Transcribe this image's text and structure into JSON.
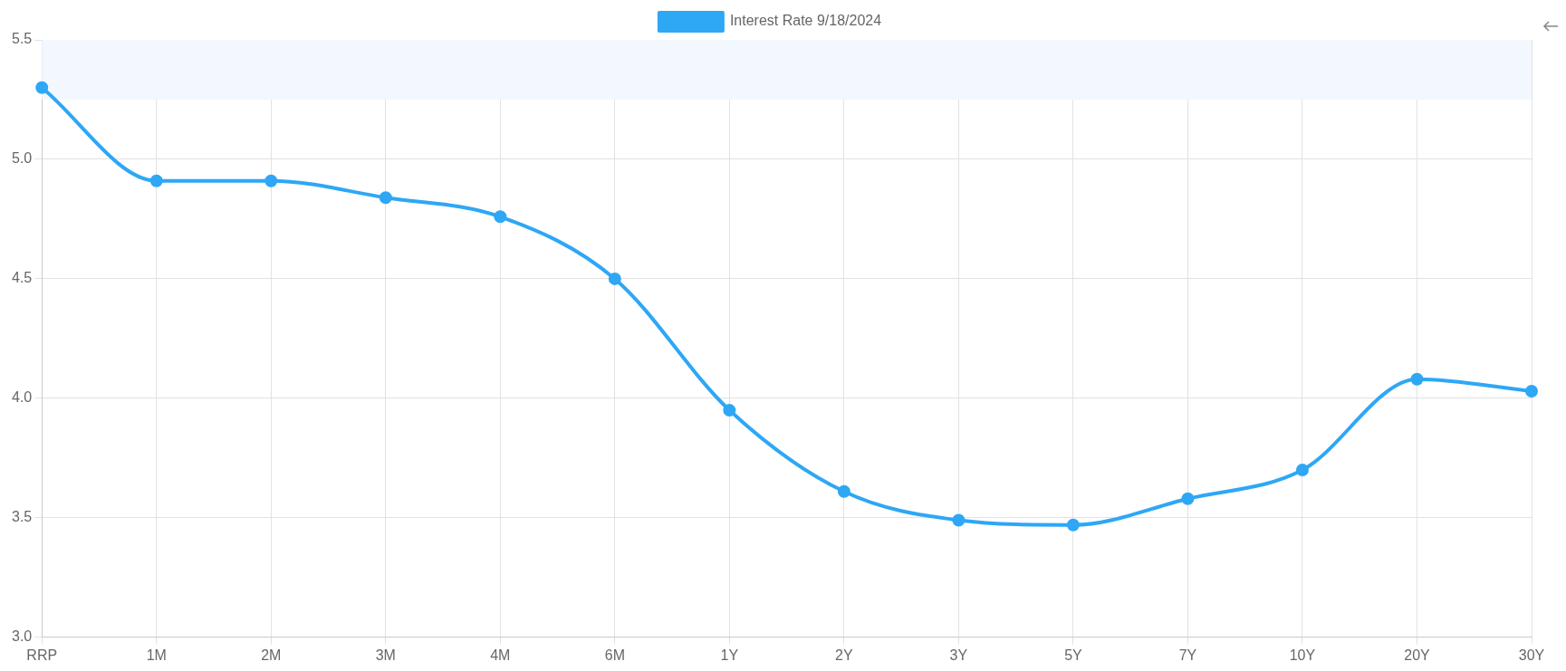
{
  "chart_data": {
    "type": "line",
    "categories": [
      "RRP",
      "1M",
      "2M",
      "3M",
      "4M",
      "6M",
      "1Y",
      "2Y",
      "3Y",
      "5Y",
      "7Y",
      "10Y",
      "20Y",
      "30Y"
    ],
    "series": [
      {
        "name": "Interest Rate 9/18/2024",
        "color": "#2ea7f5",
        "values": [
          5.3,
          4.91,
          4.91,
          4.84,
          4.76,
          4.5,
          3.95,
          3.61,
          3.49,
          3.47,
          3.58,
          3.7,
          4.08,
          4.03
        ]
      }
    ],
    "ylim": [
      3.0,
      5.5
    ],
    "yticks": [
      {
        "value": 3.0,
        "label": "3.0"
      },
      {
        "value": 3.5,
        "label": "3.5"
      },
      {
        "value": 4.0,
        "label": "4.0"
      },
      {
        "value": 4.5,
        "label": "4.5"
      },
      {
        "value": 5.0,
        "label": "5.0"
      },
      {
        "value": 5.5,
        "label": "5.5"
      }
    ],
    "bands": [
      {
        "axis": "y",
        "from": 5.25,
        "to": 5.5,
        "color": "#f2f8fe"
      }
    ],
    "grid": true,
    "legend": "top",
    "marker": "circle",
    "line_style": "solid"
  }
}
